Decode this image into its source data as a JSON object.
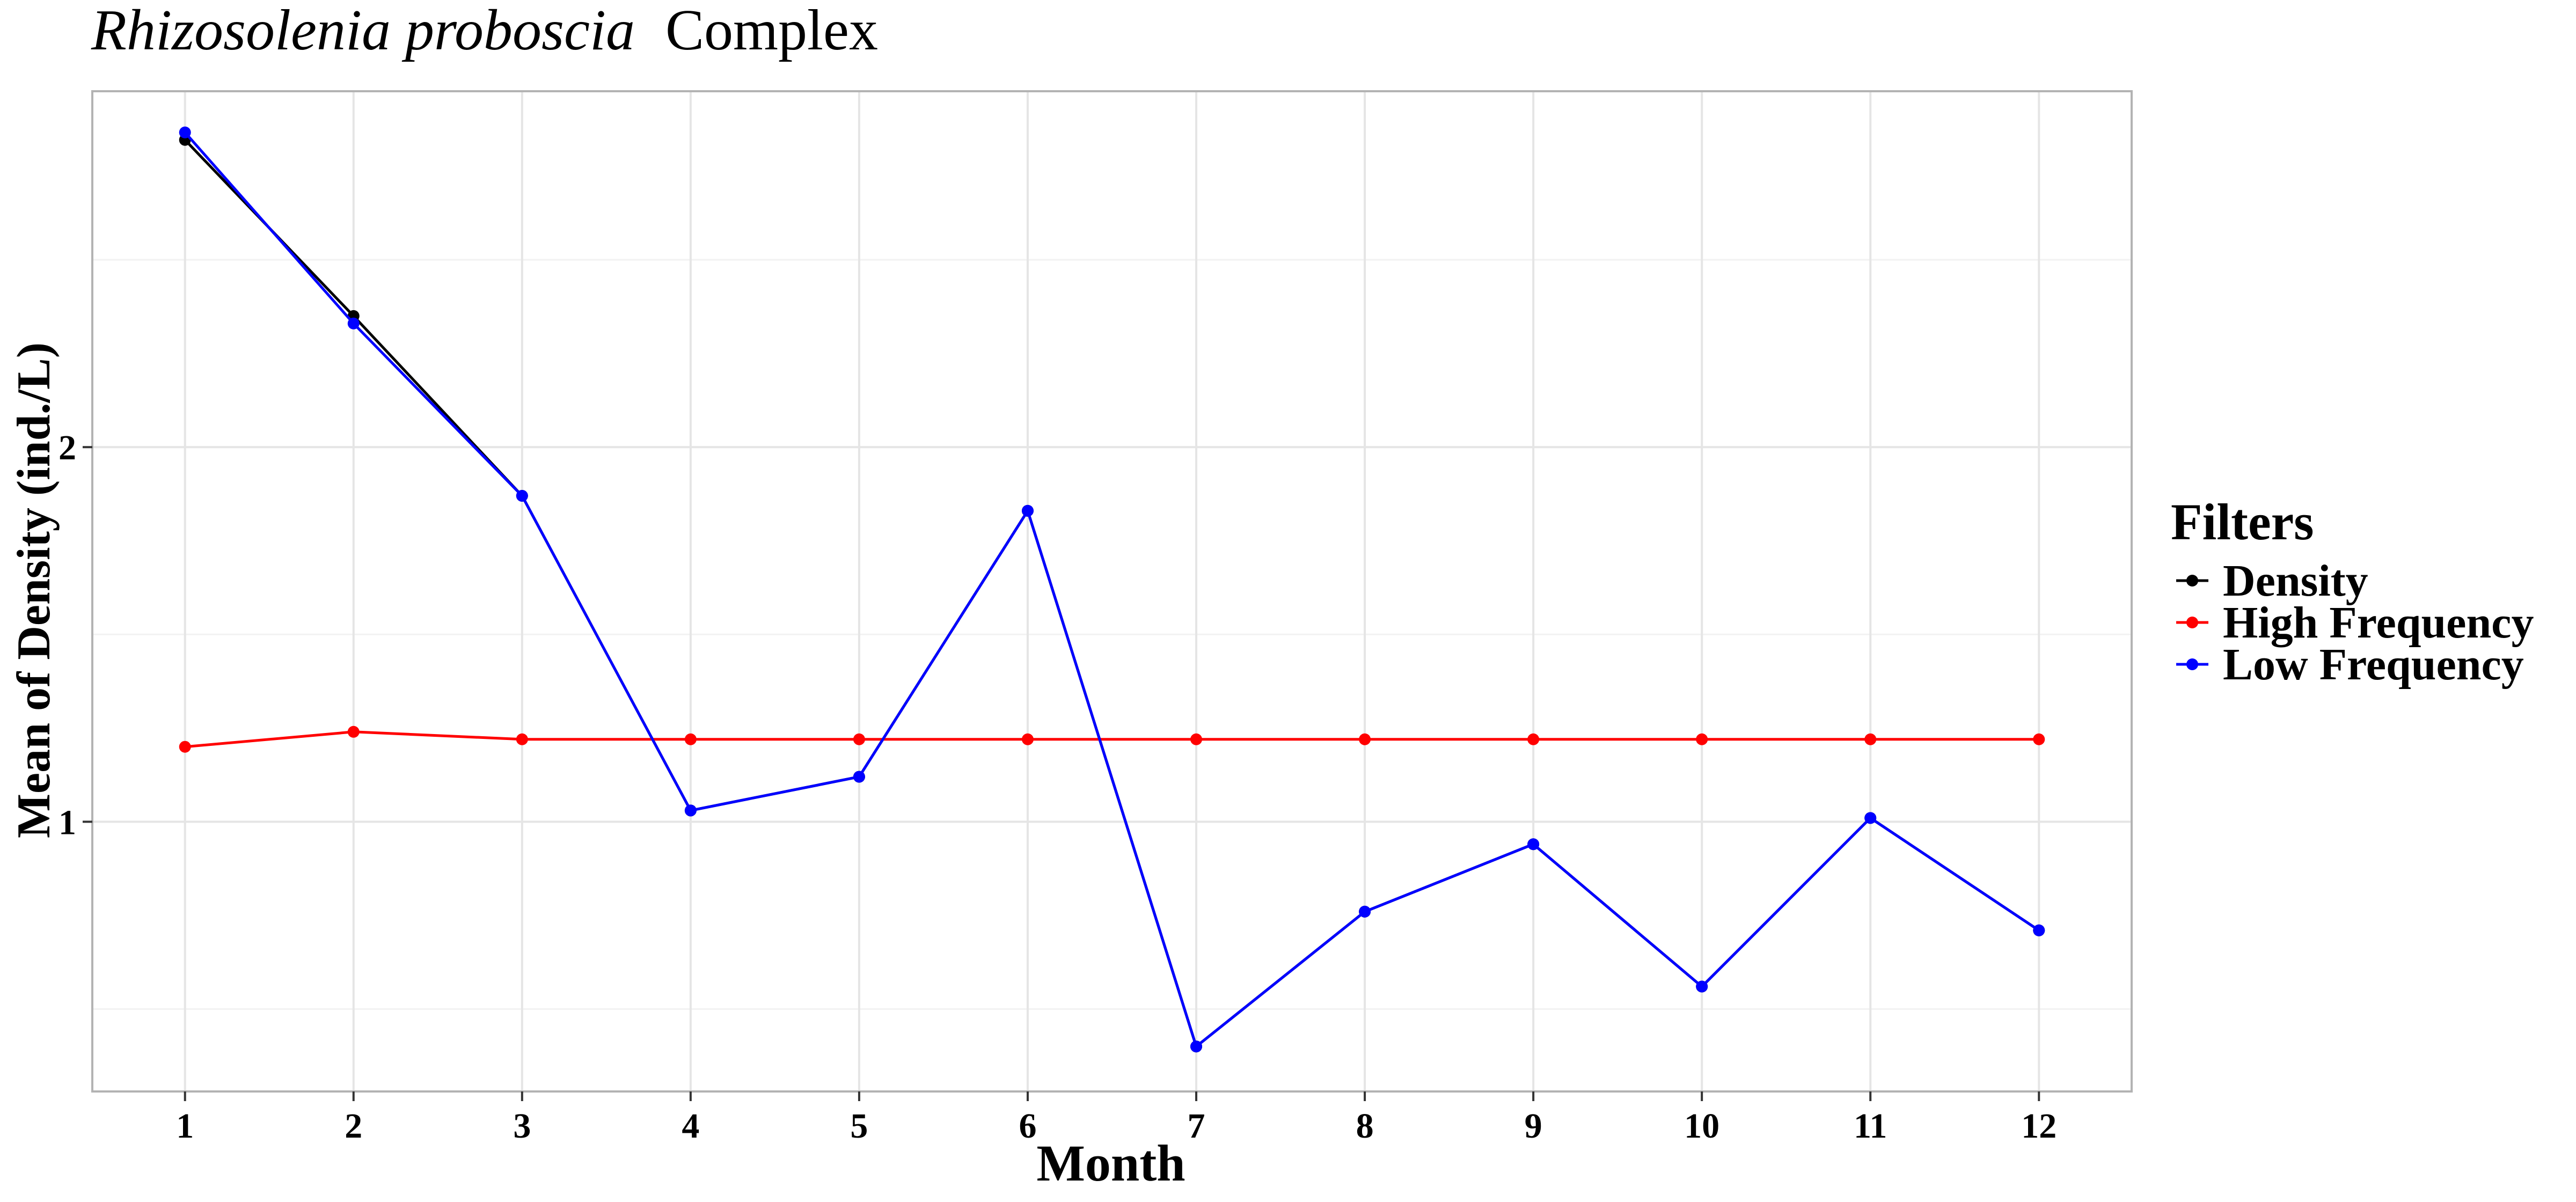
{
  "chart_data": {
    "type": "line",
    "title_italic": "Rhizosolenia proboscia",
    "title_plain": "Complex",
    "xlabel": "Month",
    "ylabel": "Mean of Density (ind./L)",
    "categories": [
      "1",
      "2",
      "3",
      "4",
      "5",
      "6",
      "7",
      "8",
      "9",
      "10",
      "11",
      "12"
    ],
    "x": [
      1,
      2,
      3,
      4,
      5,
      6,
      7,
      8,
      9,
      10,
      11,
      12
    ],
    "xlim": [
      0.45,
      12.55
    ],
    "ylim": [
      0.28,
      2.95
    ],
    "y_ticks": [
      1,
      2
    ],
    "y_tick_labels": [
      "1",
      "2"
    ],
    "y_minor_ticks": [
      0.5,
      1.5,
      2.5
    ],
    "grid": true,
    "legend": {
      "title": "Filters",
      "position": "right"
    },
    "series": [
      {
        "name": "Density",
        "color": "#000000",
        "values": [
          2.82,
          2.35,
          1.87,
          1.03,
          1.12,
          1.83,
          0.4,
          0.76,
          0.94,
          0.56,
          1.01,
          0.71
        ]
      },
      {
        "name": "High Frequency",
        "color": "#ff0000",
        "values": [
          1.2,
          1.24,
          1.22,
          1.22,
          1.22,
          1.22,
          1.22,
          1.22,
          1.22,
          1.22,
          1.22,
          1.22
        ]
      },
      {
        "name": "Low Frequency",
        "color": "#0000ff",
        "values": [
          2.84,
          2.33,
          1.87,
          1.03,
          1.12,
          1.83,
          0.4,
          0.76,
          0.94,
          0.56,
          1.01,
          0.71
        ]
      }
    ]
  }
}
